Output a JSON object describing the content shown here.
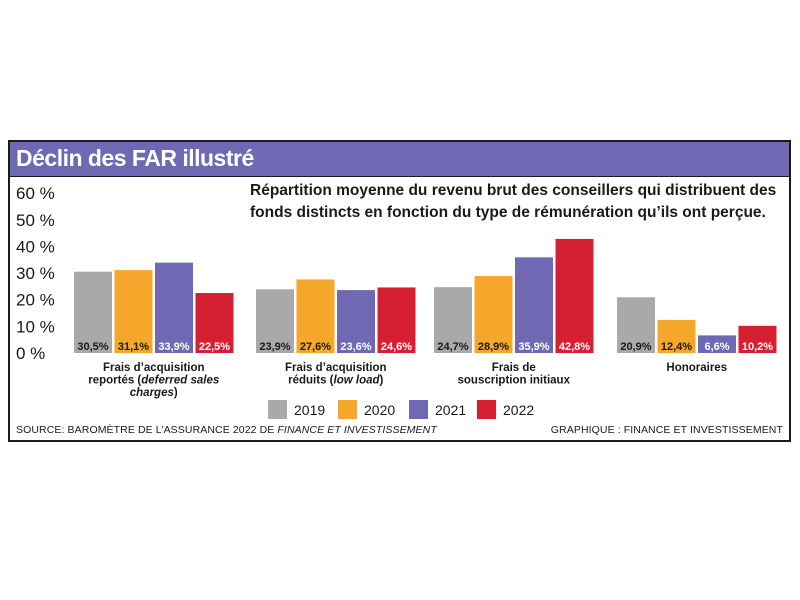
{
  "title": "Déclin des FAR illustré",
  "subtitle": "Répartition moyenne du revenu brut des conseillers qui distribuent des fonds distincts en fonction du type de rémunération qu’ils ont perçue.",
  "source": {
    "prefix": "SOURCE: BAROMÈTRE DE L’ASSURANCE 2022 DE ",
    "italic": "FINANCE ET INVESTISSEMENT"
  },
  "credit": "GRAPHIQUE : FINANCE ET INVESTISSEMENT",
  "colors": {
    "title_bar": "#6f68b3",
    "2019": "#a7a9ab",
    "2020": "#f4a72a",
    "2021": "#6f68b3",
    "2022": "#d71f32"
  },
  "chart_data": {
    "type": "bar",
    "ylim": [
      0,
      60
    ],
    "yticks": [
      "60 %",
      "50 %",
      "40 %",
      "30 %",
      "20 %",
      "10 %",
      "0 %"
    ],
    "ytick_values": [
      60,
      50,
      40,
      30,
      20,
      10,
      0
    ],
    "categories": [
      {
        "lines": [
          {
            "text": "Frais d’acquisition"
          },
          {
            "text": "reportés (",
            "italic": "deferred sales",
            "after": ""
          },
          {
            "italic": "charges",
            "text": "",
            "after": ")"
          }
        ]
      },
      {
        "lines": [
          {
            "text": "Frais d’acquisition"
          },
          {
            "text": "réduits (",
            "italic": "low load",
            "after": ")"
          }
        ]
      },
      {
        "lines": [
          {
            "text": "Frais de"
          },
          {
            "text": "souscription initiaux"
          }
        ]
      },
      {
        "lines": [
          {
            "text": "Honoraires"
          }
        ]
      }
    ],
    "series": [
      {
        "name": "2019",
        "values": [
          30.5,
          23.9,
          24.7,
          20.9
        ],
        "labels": [
          "30,5%",
          "23,9%",
          "24,7%",
          "20,9%"
        ]
      },
      {
        "name": "2020",
        "values": [
          31.1,
          27.6,
          28.9,
          12.4
        ],
        "labels": [
          "31,1%",
          "27,6%",
          "28,9%",
          "12,4%"
        ]
      },
      {
        "name": "2021",
        "values": [
          33.9,
          23.6,
          35.9,
          6.6
        ],
        "labels": [
          "33,9%",
          "23,6%",
          "35,9%",
          "6,6%"
        ]
      },
      {
        "name": "2022",
        "values": [
          22.5,
          24.6,
          42.8,
          10.2
        ],
        "labels": [
          "22,5%",
          "24,6%",
          "42,8%",
          "10,2%"
        ]
      }
    ],
    "legend_position": "bottom-center",
    "grid": false
  }
}
